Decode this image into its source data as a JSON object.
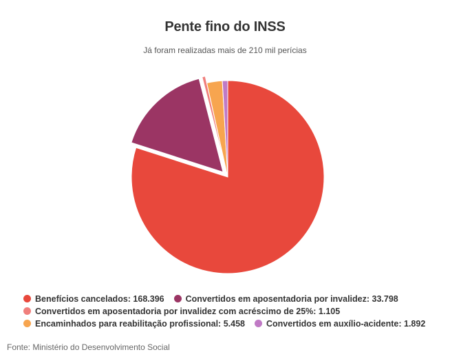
{
  "chart_data": {
    "type": "pie",
    "title": "Pente fino do INSS",
    "subtitle": "Já foram realizadas mais de 210 mil perícias",
    "source": "Fonte: Ministério do Desenvolvimento Social",
    "legend_position": "bottom",
    "slices": [
      {
        "label": "Benefícios cancelados: 168.396",
        "value": 168396,
        "color": "#e8483c",
        "exploded": false
      },
      {
        "label": "Convertidos em aposentadoria por invalidez: 33.798",
        "value": 33798,
        "color": "#9b3564",
        "exploded": true
      },
      {
        "label": "Convertidos em aposentadoria por invalidez com acréscimo de 25%: 1.105",
        "value": 1105,
        "color": "#f07f7c",
        "exploded": true
      },
      {
        "label": "Encaminhados para reabilitação profissional: 5.458",
        "value": 5458,
        "color": "#f7a54f",
        "exploded": false
      },
      {
        "label": "Convertidos em auxílio-acidente: 1.892",
        "value": 1892,
        "color": "#c07ac5",
        "exploded": false
      }
    ],
    "legend_rows": [
      [
        0,
        1
      ],
      [
        2
      ],
      [
        3,
        4
      ]
    ]
  }
}
